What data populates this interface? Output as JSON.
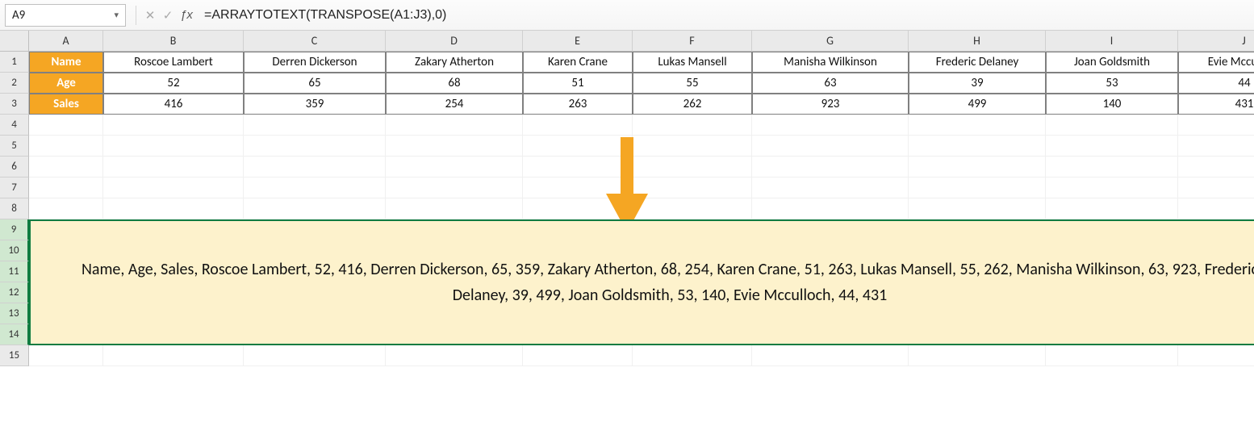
{
  "formula_bar": {
    "name_box": "A9",
    "formula": "=ARRAYTOTEXT(TRANSPOSE(A1:J3),0)"
  },
  "columns": [
    "A",
    "B",
    "C",
    "D",
    "E",
    "F",
    "G",
    "H",
    "I",
    "J"
  ],
  "row_count": 15,
  "data": {
    "row_headers": [
      "Name",
      "Age",
      "Sales"
    ],
    "people": [
      "Roscoe Lambert",
      "Derren Dickerson",
      "Zakary Atherton",
      "Karen Crane",
      "Lukas Mansell",
      "Manisha Wilkinson",
      "Frederic Delaney",
      "Joan Goldsmith",
      "Evie Mcculloch"
    ],
    "ages": [
      "52",
      "65",
      "68",
      "51",
      "55",
      "63",
      "39",
      "53",
      "44"
    ],
    "sales": [
      "416",
      "359",
      "254",
      "263",
      "262",
      "923",
      "499",
      "140",
      "431"
    ]
  },
  "colors": {
    "header_bg": "#f5a623",
    "header_fg": "#ffffff",
    "result_bg": "#fdf2cc",
    "selection_border": "#107c41",
    "arrow": "#f5a623"
  },
  "result": {
    "cell": "A9",
    "span_rows": [
      9,
      14
    ],
    "text": "Name, Age, Sales, Roscoe Lambert, 52, 416, Derren Dickerson, 65, 359, Zakary Atherton, 68, 254, Karen Crane, 51, 263, Lukas Mansell, 55, 262, Manisha Wilkinson, 63, 923, Frederic Delaney, 39, 499, Joan Goldsmith, 53, 140, Evie Mcculloch, 44, 431"
  }
}
